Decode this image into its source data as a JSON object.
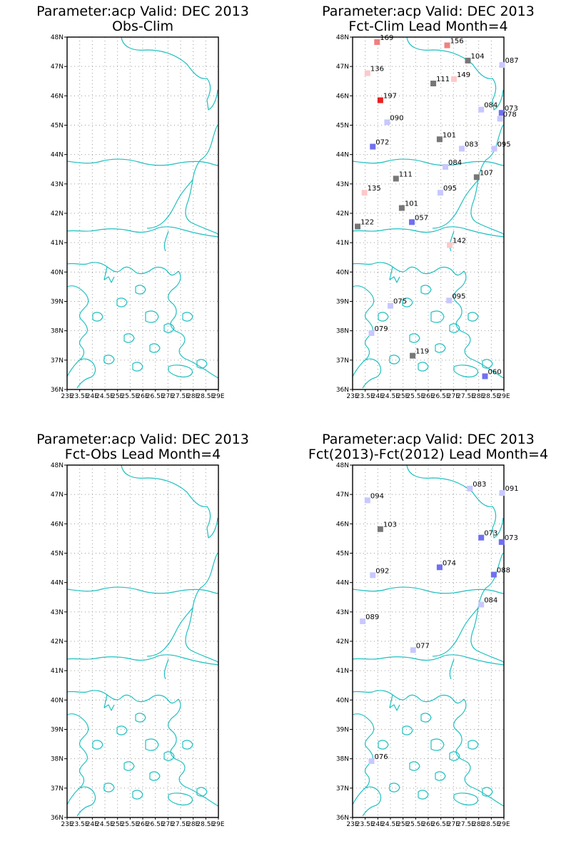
{
  "lat_ticks": [
    "48N",
    "47N",
    "46N",
    "45N",
    "44N",
    "43N",
    "42N",
    "41N",
    "40N",
    "39N",
    "38N",
    "37N",
    "36N"
  ],
  "lon_ticks": [
    "23E",
    "23.5E",
    "24E",
    "24.5E",
    "25E",
    "25.5E",
    "26E",
    "26.5E",
    "27E",
    "27.5E",
    "28E",
    "28.5E",
    "29E"
  ],
  "extent": {
    "lon_min": 23,
    "lon_max": 29,
    "lat_min": 36,
    "lat_max": 48
  },
  "colors": {
    "coast": "#20c0c0",
    "neutral": "#777777",
    "pos": [
      "#ffc8c8",
      "#f08080",
      "#e82020"
    ],
    "neg": [
      "#c8c8ff",
      "#7070f0"
    ]
  },
  "panels": [
    {
      "title1": "Parameter:acp Valid: DEC 2013",
      "title2": "Obs-Clim",
      "stations": []
    },
    {
      "title1": "Parameter:acp Valid: DEC 2013",
      "title2": "Fct-Clim Lead Month=4",
      "stations": [
        {
          "lon": 23.97,
          "lat": 47.83,
          "label": "169",
          "cls": "pos2"
        },
        {
          "lon": 26.75,
          "lat": 47.72,
          "label": "156",
          "cls": "pos2"
        },
        {
          "lon": 27.57,
          "lat": 47.2,
          "label": "104",
          "cls": "neutral"
        },
        {
          "lon": 28.93,
          "lat": 47.05,
          "label": "087",
          "cls": "neg1"
        },
        {
          "lon": 23.59,
          "lat": 46.77,
          "label": "136",
          "cls": "pos1"
        },
        {
          "lon": 27.02,
          "lat": 46.57,
          "label": "149",
          "cls": "pos1"
        },
        {
          "lon": 26.2,
          "lat": 46.42,
          "label": "111",
          "cls": "neutral"
        },
        {
          "lon": 24.1,
          "lat": 45.85,
          "label": "197",
          "cls": "pos3"
        },
        {
          "lon": 28.1,
          "lat": 45.53,
          "label": "084",
          "cls": "neg1"
        },
        {
          "lon": 28.91,
          "lat": 45.42,
          "label": "073",
          "cls": "neg2"
        },
        {
          "lon": 28.85,
          "lat": 45.22,
          "label": "078",
          "cls": "neg1"
        },
        {
          "lon": 24.37,
          "lat": 45.1,
          "label": "090",
          "cls": "neg1"
        },
        {
          "lon": 26.45,
          "lat": 44.52,
          "label": "101",
          "cls": "neutral"
        },
        {
          "lon": 23.8,
          "lat": 44.27,
          "label": "072",
          "cls": "neg2"
        },
        {
          "lon": 27.33,
          "lat": 44.2,
          "label": "083",
          "cls": "neg1"
        },
        {
          "lon": 28.62,
          "lat": 44.2,
          "label": "095",
          "cls": "neg1"
        },
        {
          "lon": 26.68,
          "lat": 43.58,
          "label": "084",
          "cls": "neg1"
        },
        {
          "lon": 27.92,
          "lat": 43.23,
          "label": "107",
          "cls": "neutral"
        },
        {
          "lon": 24.72,
          "lat": 43.18,
          "label": "111",
          "cls": "neutral"
        },
        {
          "lon": 26.48,
          "lat": 42.7,
          "label": "095",
          "cls": "neg1"
        },
        {
          "lon": 23.47,
          "lat": 42.7,
          "label": "135",
          "cls": "pos1"
        },
        {
          "lon": 24.95,
          "lat": 42.18,
          "label": "101",
          "cls": "neutral"
        },
        {
          "lon": 25.35,
          "lat": 41.7,
          "label": "057",
          "cls": "neg2"
        },
        {
          "lon": 23.2,
          "lat": 41.55,
          "label": "122",
          "cls": "neutral"
        },
        {
          "lon": 26.85,
          "lat": 40.92,
          "label": "142",
          "cls": "pos1"
        },
        {
          "lon": 24.5,
          "lat": 38.85,
          "label": "075",
          "cls": "neg1"
        },
        {
          "lon": 26.83,
          "lat": 39.03,
          "label": "095",
          "cls": "neg1"
        },
        {
          "lon": 23.75,
          "lat": 37.92,
          "label": "079",
          "cls": "neg1"
        },
        {
          "lon": 25.38,
          "lat": 37.15,
          "label": "119",
          "cls": "neutral"
        },
        {
          "lon": 28.25,
          "lat": 36.45,
          "label": "060",
          "cls": "neg2"
        }
      ]
    },
    {
      "title1": "Parameter:acp Valid: DEC 2013",
      "title2": "Fct-Obs Lead Month=4",
      "stations": []
    },
    {
      "title1": "Parameter:acp Valid: DEC 2013",
      "title2": "Fct(2013)-Fct(2012) Lead Month=4",
      "stations": [
        {
          "lon": 27.65,
          "lat": 47.2,
          "label": "083",
          "cls": "neg1"
        },
        {
          "lon": 28.93,
          "lat": 47.05,
          "label": "091",
          "cls": "neg1"
        },
        {
          "lon": 23.59,
          "lat": 46.8,
          "label": "094",
          "cls": "neg1"
        },
        {
          "lon": 24.1,
          "lat": 45.82,
          "label": "103",
          "cls": "neutral"
        },
        {
          "lon": 28.1,
          "lat": 45.53,
          "label": "073",
          "cls": "neg2"
        },
        {
          "lon": 28.91,
          "lat": 45.38,
          "label": "073",
          "cls": "neg2"
        },
        {
          "lon": 26.45,
          "lat": 44.52,
          "label": "074",
          "cls": "neg2"
        },
        {
          "lon": 23.8,
          "lat": 44.25,
          "label": "092",
          "cls": "neg1"
        },
        {
          "lon": 28.6,
          "lat": 44.27,
          "label": "088",
          "cls": "neg2"
        },
        {
          "lon": 28.1,
          "lat": 43.25,
          "label": "084",
          "cls": "neg1"
        },
        {
          "lon": 23.4,
          "lat": 42.68,
          "label": "089",
          "cls": "neg1"
        },
        {
          "lon": 25.4,
          "lat": 41.7,
          "label": "077",
          "cls": "neg1"
        },
        {
          "lon": 23.75,
          "lat": 37.92,
          "label": "076",
          "cls": "neg1"
        }
      ]
    }
  ]
}
